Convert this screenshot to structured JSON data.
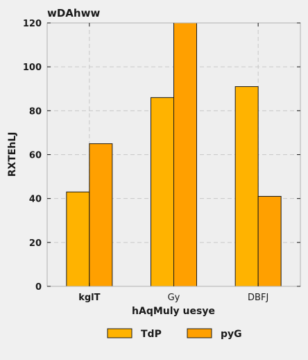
{
  "chart_data": {
    "type": "bar",
    "title": "wDAhww",
    "xlabel": "hAqMuly uesye",
    "ylabel": "RXTEhLJ",
    "categories": [
      "kglT",
      "Gy",
      "DBFJ"
    ],
    "series": [
      {
        "name": "TdP",
        "values": [
          43,
          86,
          91
        ],
        "color": "#ffb300"
      },
      {
        "name": "pyG",
        "values": [
          65,
          120,
          41
        ],
        "color": "#ffa000"
      }
    ],
    "ylim": [
      0,
      120
    ],
    "yticks": [
      0,
      20,
      40,
      60,
      80,
      100,
      120
    ],
    "grid": true,
    "legend_position": "bottom"
  }
}
